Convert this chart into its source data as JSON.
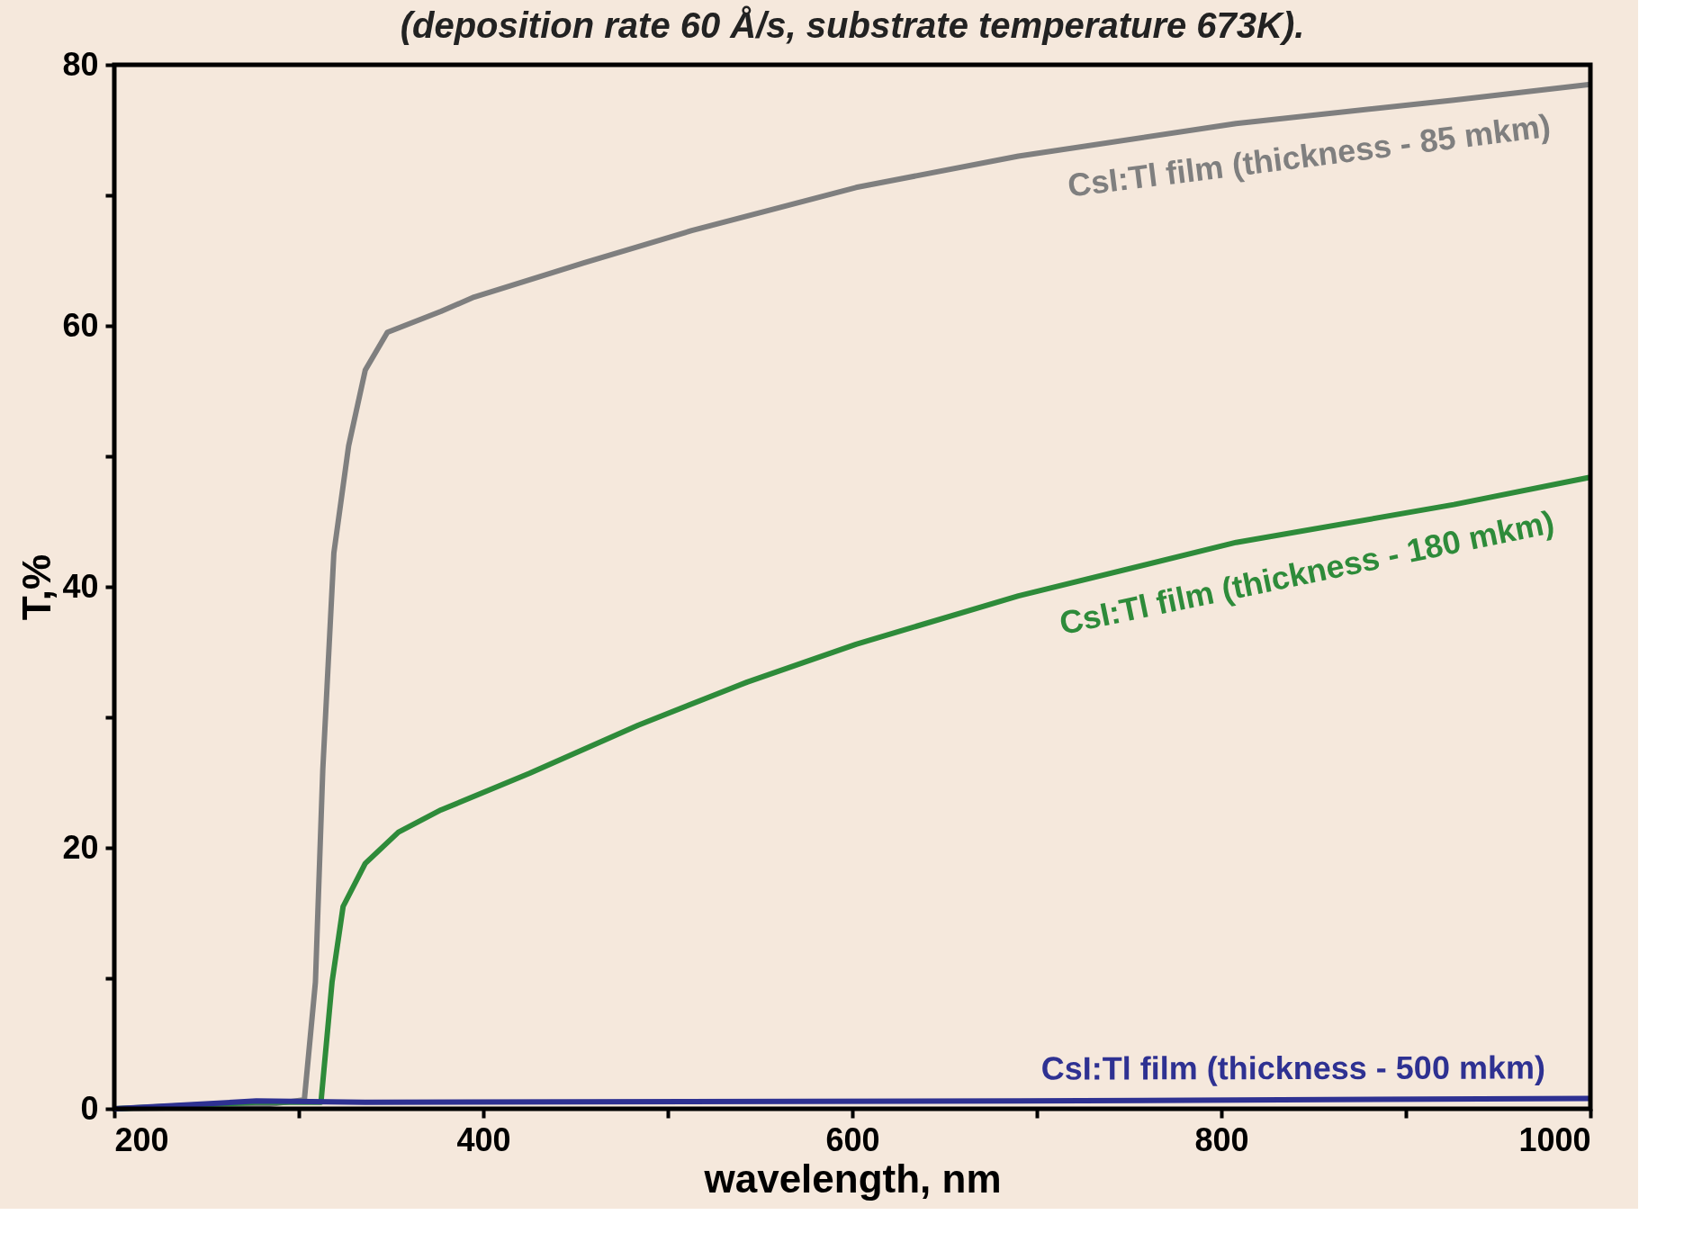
{
  "chart_data": {
    "type": "line",
    "title": "(deposition rate 60 Å/s, substrate temperature 673K).",
    "xlabel": "wavelength, nm",
    "ylabel": "T,%",
    "xlim": [
      200,
      1000
    ],
    "ylim": [
      0,
      80
    ],
    "xticks": [
      200,
      {
        "value": 300,
        "label": null
      },
      400,
      {
        "value": 500,
        "label": null
      },
      600,
      {
        "value": 700,
        "label": null
      },
      800,
      {
        "value": 900,
        "label": null
      },
      1000
    ],
    "yticks": [
      0,
      {
        "value": 10,
        "label": null
      },
      20,
      {
        "value": 30,
        "label": null
      },
      40,
      {
        "value": 50,
        "label": null
      },
      60,
      {
        "value": 70,
        "label": null
      },
      80
    ],
    "grid": false,
    "marker": "none",
    "line_style": "solid",
    "series": [
      {
        "name": "CsI:Tl film (thickness - 85 mkm)",
        "color": "#7f7f7f",
        "x": [
          200,
          277,
          303,
          309,
          313,
          319,
          327,
          336,
          348,
          377,
          395,
          454,
          513,
          602,
          690,
          808,
          926,
          1000
        ],
        "values": [
          0,
          0.2,
          0.7,
          9.7,
          26,
          42.6,
          50.8,
          56.6,
          59.5,
          61.1,
          62.2,
          64.8,
          67.3,
          70.6,
          73,
          75.5,
          77.3,
          78.5
        ]
      },
      {
        "name": "CsI:Tl film (thickness - 180 mkm)",
        "color": "#2e8b3a",
        "x": [
          200,
          277,
          312,
          318,
          324,
          336,
          354,
          377,
          425,
          484,
          543,
          602,
          690,
          808,
          926,
          1000
        ],
        "values": [
          0,
          0.5,
          0.5,
          9.7,
          15.5,
          18.8,
          21.2,
          22.9,
          25.7,
          29.4,
          32.7,
          35.6,
          39.3,
          43.4,
          46.3,
          48.4
        ]
      },
      {
        "name": "CsI:Tl film (thickness - 500 mkm)",
        "color": "#2e3192",
        "x": [
          200,
          277,
          336,
          690,
          1000
        ],
        "values": [
          0,
          0.6,
          0.5,
          0.6,
          0.8
        ]
      }
    ]
  }
}
